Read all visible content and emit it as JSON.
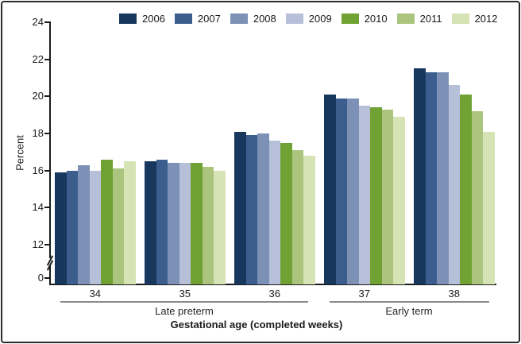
{
  "axes": {
    "y": {
      "label": "Percent",
      "ticks": [
        "24",
        "22",
        "20",
        "18",
        "16",
        "14",
        "12"
      ],
      "zero_label": "0",
      "has_break": true
    },
    "x": {
      "title": "Gestational age (completed weeks)",
      "tick_labels": [
        "34",
        "35",
        "36",
        "37",
        "38"
      ],
      "group_labels": [
        {
          "label": "Late preterm",
          "weeks": [
            "34",
            "35",
            "36"
          ]
        },
        {
          "label": "Early term",
          "weeks": [
            "37",
            "38"
          ]
        }
      ]
    }
  },
  "chart_data": {
    "type": "bar",
    "title": "",
    "categories": [
      "34",
      "35",
      "36",
      "37",
      "38"
    ],
    "series": [
      {
        "name": "2006",
        "color": "#17375d",
        "values": [
          15.9,
          16.5,
          18.1,
          20.1,
          21.5
        ]
      },
      {
        "name": "2007",
        "color": "#3c5e8f",
        "values": [
          16.0,
          16.6,
          17.9,
          19.9,
          21.3
        ]
      },
      {
        "name": "2008",
        "color": "#7d90b6",
        "values": [
          16.3,
          16.4,
          18.0,
          19.9,
          21.3
        ]
      },
      {
        "name": "2009",
        "color": "#b6c0d9",
        "values": [
          16.0,
          16.4,
          17.6,
          19.5,
          20.6
        ]
      },
      {
        "name": "2010",
        "color": "#70a233",
        "values": [
          16.6,
          16.4,
          17.5,
          19.4,
          20.1
        ]
      },
      {
        "name": "2011",
        "color": "#abc57e",
        "values": [
          16.1,
          16.2,
          17.1,
          19.3,
          19.2
        ]
      },
      {
        "name": "2012",
        "color": "#d5e3b5",
        "values": [
          16.5,
          16.0,
          16.8,
          18.9,
          18.1
        ]
      }
    ],
    "ylabel": "Percent",
    "xlabel": "Gestational age (completed weeks)",
    "ylim": [
      0,
      24
    ],
    "y_break_between": [
      0,
      12
    ],
    "grid": false,
    "legend_position": "top"
  }
}
